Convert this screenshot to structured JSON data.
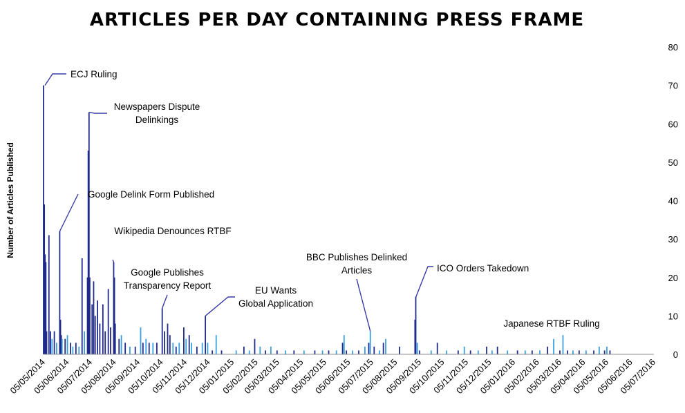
{
  "chart_data": {
    "type": "bar",
    "title": "ARTICLES PER DAY CONTAINING PRESS FRAME",
    "ylabel": "Number of Articles Published",
    "xlabel": "",
    "ylim": [
      0,
      80
    ],
    "y_ticks": [
      0,
      10,
      20,
      30,
      40,
      50,
      60,
      70,
      80
    ],
    "y_axis_side": "right",
    "x_start": "2014-05-05",
    "x_end": "2016-07-05",
    "x_ticks": [
      "05/05/2014",
      "05/06/2014",
      "05/07/2014",
      "05/08/2014",
      "05/09/2014",
      "05/10/2014",
      "05/11/2014",
      "05/12/2014",
      "05/01/2015",
      "05/02/2015",
      "05/03/2015",
      "05/04/2015",
      "05/05/2015",
      "05/06/2015",
      "05/07/2015",
      "05/08/2015",
      "05/09/2015",
      "05/10/2015",
      "05/11/2015",
      "05/12/2015",
      "05/01/2016",
      "05/02/2016",
      "05/03/2016",
      "05/04/2016",
      "05/05/2016",
      "05/06/2016",
      "05/07/2016"
    ],
    "colors": {
      "bar_dark": "#1f2a8a",
      "bar_light": "#3a9fe0",
      "annotation_line": "#3a3aa8"
    },
    "points": [
      {
        "x": "2014-05-05",
        "y": 70
      },
      {
        "x": "2014-05-06",
        "y": 39
      },
      {
        "x": "2014-05-07",
        "y": 26
      },
      {
        "x": "2014-05-08",
        "y": 24
      },
      {
        "x": "2014-05-09",
        "y": 6
      },
      {
        "x": "2014-05-12",
        "y": 31
      },
      {
        "x": "2014-05-14",
        "y": 6
      },
      {
        "x": "2014-05-16",
        "y": 4
      },
      {
        "x": "2014-05-19",
        "y": 6
      },
      {
        "x": "2014-05-22",
        "y": 3
      },
      {
        "x": "2014-05-26",
        "y": 32
      },
      {
        "x": "2014-05-27",
        "y": 9
      },
      {
        "x": "2014-05-28",
        "y": 5
      },
      {
        "x": "2014-05-29",
        "y": 4
      },
      {
        "x": "2014-06-02",
        "y": 4
      },
      {
        "x": "2014-06-05",
        "y": 5
      },
      {
        "x": "2014-06-09",
        "y": 3
      },
      {
        "x": "2014-06-12",
        "y": 2
      },
      {
        "x": "2014-06-16",
        "y": 3
      },
      {
        "x": "2014-06-20",
        "y": 2
      },
      {
        "x": "2014-06-24",
        "y": 25
      },
      {
        "x": "2014-06-27",
        "y": 6
      },
      {
        "x": "2014-07-01",
        "y": 20
      },
      {
        "x": "2014-07-02",
        "y": 53
      },
      {
        "x": "2014-07-03",
        "y": 63
      },
      {
        "x": "2014-07-04",
        "y": 20
      },
      {
        "x": "2014-07-07",
        "y": 13
      },
      {
        "x": "2014-07-09",
        "y": 19
      },
      {
        "x": "2014-07-11",
        "y": 10
      },
      {
        "x": "2014-07-14",
        "y": 14
      },
      {
        "x": "2014-07-17",
        "y": 8
      },
      {
        "x": "2014-07-21",
        "y": 13
      },
      {
        "x": "2014-07-24",
        "y": 6
      },
      {
        "x": "2014-07-28",
        "y": 17
      },
      {
        "x": "2014-07-31",
        "y": 7
      },
      {
        "x": "2014-08-04",
        "y": 24
      },
      {
        "x": "2014-08-05",
        "y": 20
      },
      {
        "x": "2014-08-06",
        "y": 8
      },
      {
        "x": "2014-08-11",
        "y": 4
      },
      {
        "x": "2014-08-14",
        "y": 5
      },
      {
        "x": "2014-08-19",
        "y": 3
      },
      {
        "x": "2014-08-25",
        "y": 2
      },
      {
        "x": "2014-09-01",
        "y": 2
      },
      {
        "x": "2014-09-08",
        "y": 7
      },
      {
        "x": "2014-09-11",
        "y": 3
      },
      {
        "x": "2014-09-15",
        "y": 4
      },
      {
        "x": "2014-09-19",
        "y": 3
      },
      {
        "x": "2014-09-24",
        "y": 3
      },
      {
        "x": "2014-09-29",
        "y": 3
      },
      {
        "x": "2014-10-06",
        "y": 12
      },
      {
        "x": "2014-10-09",
        "y": 6
      },
      {
        "x": "2014-10-13",
        "y": 8
      },
      {
        "x": "2014-10-16",
        "y": 5
      },
      {
        "x": "2014-10-20",
        "y": 3
      },
      {
        "x": "2014-10-24",
        "y": 2
      },
      {
        "x": "2014-10-28",
        "y": 3
      },
      {
        "x": "2014-11-03",
        "y": 7
      },
      {
        "x": "2014-11-06",
        "y": 4
      },
      {
        "x": "2014-11-10",
        "y": 5
      },
      {
        "x": "2014-11-13",
        "y": 3
      },
      {
        "x": "2014-11-20",
        "y": 2
      },
      {
        "x": "2014-11-27",
        "y": 3
      },
      {
        "x": "2014-12-01",
        "y": 10
      },
      {
        "x": "2014-12-04",
        "y": 3
      },
      {
        "x": "2014-12-10",
        "y": 1
      },
      {
        "x": "2014-12-15",
        "y": 5
      },
      {
        "x": "2014-12-22",
        "y": 1
      },
      {
        "x": "2015-01-10",
        "y": 1
      },
      {
        "x": "2015-01-20",
        "y": 2
      },
      {
        "x": "2015-01-27",
        "y": 1
      },
      {
        "x": "2015-02-03",
        "y": 4
      },
      {
        "x": "2015-02-10",
        "y": 2
      },
      {
        "x": "2015-02-17",
        "y": 1
      },
      {
        "x": "2015-02-24",
        "y": 2
      },
      {
        "x": "2015-03-04",
        "y": 1
      },
      {
        "x": "2015-03-15",
        "y": 1
      },
      {
        "x": "2015-03-26",
        "y": 1
      },
      {
        "x": "2015-04-08",
        "y": 1
      },
      {
        "x": "2015-04-22",
        "y": 1
      },
      {
        "x": "2015-05-02",
        "y": 1
      },
      {
        "x": "2015-05-10",
        "y": 1
      },
      {
        "x": "2015-05-20",
        "y": 1
      },
      {
        "x": "2015-05-28",
        "y": 3
      },
      {
        "x": "2015-05-30",
        "y": 5
      },
      {
        "x": "2015-06-02",
        "y": 1
      },
      {
        "x": "2015-06-10",
        "y": 1
      },
      {
        "x": "2015-06-18",
        "y": 1
      },
      {
        "x": "2015-06-26",
        "y": 2
      },
      {
        "x": "2015-07-01",
        "y": 3
      },
      {
        "x": "2015-07-03",
        "y": 6
      },
      {
        "x": "2015-07-08",
        "y": 2
      },
      {
        "x": "2015-07-15",
        "y": 1
      },
      {
        "x": "2015-07-20",
        "y": 3
      },
      {
        "x": "2015-07-23",
        "y": 4
      },
      {
        "x": "2015-08-10",
        "y": 2
      },
      {
        "x": "2015-08-30",
        "y": 9
      },
      {
        "x": "2015-08-31",
        "y": 15
      },
      {
        "x": "2015-09-02",
        "y": 3
      },
      {
        "x": "2015-09-05",
        "y": 1
      },
      {
        "x": "2015-09-20",
        "y": 1
      },
      {
        "x": "2015-09-28",
        "y": 3
      },
      {
        "x": "2015-10-10",
        "y": 1
      },
      {
        "x": "2015-10-25",
        "y": 1
      },
      {
        "x": "2015-11-02",
        "y": 2
      },
      {
        "x": "2015-11-10",
        "y": 1
      },
      {
        "x": "2015-11-20",
        "y": 1
      },
      {
        "x": "2015-12-01",
        "y": 2
      },
      {
        "x": "2015-12-08",
        "y": 1
      },
      {
        "x": "2015-12-15",
        "y": 2
      },
      {
        "x": "2015-12-28",
        "y": 1
      },
      {
        "x": "2016-01-10",
        "y": 1
      },
      {
        "x": "2016-01-20",
        "y": 1
      },
      {
        "x": "2016-01-29",
        "y": 1
      },
      {
        "x": "2016-02-08",
        "y": 1
      },
      {
        "x": "2016-02-18",
        "y": 2
      },
      {
        "x": "2016-02-26",
        "y": 4
      },
      {
        "x": "2016-03-05",
        "y": 1
      },
      {
        "x": "2016-03-09",
        "y": 5
      },
      {
        "x": "2016-03-15",
        "y": 1
      },
      {
        "x": "2016-03-22",
        "y": 1
      },
      {
        "x": "2016-03-30",
        "y": 1
      },
      {
        "x": "2016-04-08",
        "y": 1
      },
      {
        "x": "2016-04-18",
        "y": 1
      },
      {
        "x": "2016-04-25",
        "y": 2
      },
      {
        "x": "2016-05-02",
        "y": 1
      },
      {
        "x": "2016-05-05",
        "y": 2
      },
      {
        "x": "2016-05-09",
        "y": 1
      }
    ],
    "annotations": [
      {
        "label": [
          "ECJ Ruling"
        ],
        "x": "2014-05-05",
        "y": 70
      },
      {
        "label": [
          "Newspapers Dispute",
          "Delinkings"
        ],
        "x": "2014-07-03",
        "y": 63
      },
      {
        "label": [
          "Google Delink Form Published"
        ],
        "x": "2014-05-26",
        "y": 32
      },
      {
        "label": [
          "Wikipedia Denounces RTBF"
        ],
        "x": "2014-08-04",
        "y": 24
      },
      {
        "label": [
          "Google Publishes",
          "Transparency Report"
        ],
        "x": "2014-10-06",
        "y": 12
      },
      {
        "label": [
          "EU Wants",
          "Global Application"
        ],
        "x": "2014-12-01",
        "y": 10
      },
      {
        "label": [
          "BBC Publishes Delinked",
          "Articles"
        ],
        "x": "2015-07-03",
        "y": 6
      },
      {
        "label": [
          "ICO Orders Takedown"
        ],
        "x": "2015-08-31",
        "y": 15
      },
      {
        "label": [
          "Japanese RTBF Ruling"
        ],
        "x": "2016-03-09",
        "y": 5
      }
    ]
  }
}
